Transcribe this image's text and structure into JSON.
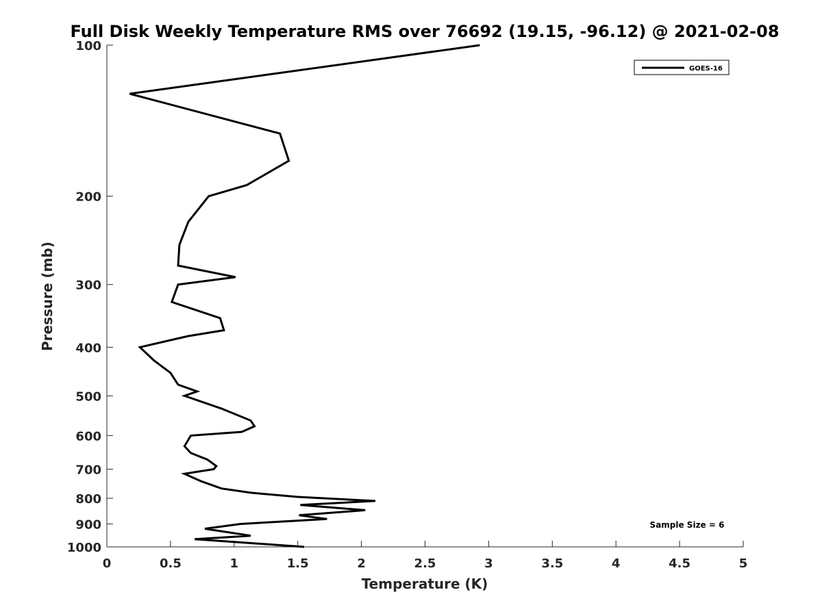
{
  "chart_data": {
    "type": "line",
    "title": "Full Disk Weekly Temperature RMS over 76692 (19.15, -96.12) @ 2021-02-08",
    "xlabel": "Temperature (K)",
    "ylabel": "Pressure (mb)",
    "xlim": [
      0,
      5
    ],
    "ylim": [
      100,
      1000
    ],
    "y_scale": "log",
    "y_reversed": true,
    "x_ticks": [
      "0",
      "0.5",
      "1",
      "1.5",
      "2",
      "2.5",
      "3",
      "3.5",
      "4",
      "4.5",
      "5"
    ],
    "y_ticks": [
      "100",
      "200",
      "300",
      "400",
      "500",
      "600",
      "700",
      "800",
      "900",
      "1000"
    ],
    "legend": {
      "position": "top-right",
      "entries": [
        "GOES-16"
      ]
    },
    "annotation": "Sample Size = 6",
    "series": [
      {
        "name": "GOES-16",
        "color": "#000000",
        "points": [
          [
            2.93,
            100
          ],
          [
            0.18,
            125
          ],
          [
            1.36,
            150
          ],
          [
            1.43,
            170
          ],
          [
            1.1,
            190
          ],
          [
            0.8,
            200
          ],
          [
            0.64,
            225
          ],
          [
            0.57,
            250
          ],
          [
            0.56,
            275
          ],
          [
            1.01,
            290
          ],
          [
            0.56,
            300
          ],
          [
            0.51,
            325
          ],
          [
            0.89,
            350
          ],
          [
            0.92,
            370
          ],
          [
            0.64,
            380
          ],
          [
            0.26,
            400
          ],
          [
            0.37,
            425
          ],
          [
            0.5,
            450
          ],
          [
            0.56,
            475
          ],
          [
            0.71,
            490
          ],
          [
            0.61,
            500
          ],
          [
            0.9,
            530
          ],
          [
            1.13,
            560
          ],
          [
            1.16,
            575
          ],
          [
            1.06,
            590
          ],
          [
            0.66,
            600
          ],
          [
            0.61,
            630
          ],
          [
            0.66,
            650
          ],
          [
            0.79,
            670
          ],
          [
            0.86,
            690
          ],
          [
            0.84,
            700
          ],
          [
            0.61,
            715
          ],
          [
            0.74,
            740
          ],
          [
            0.9,
            765
          ],
          [
            1.13,
            780
          ],
          [
            1.5,
            795
          ],
          [
            2.11,
            810
          ],
          [
            1.52,
            825
          ],
          [
            2.03,
            845
          ],
          [
            1.51,
            865
          ],
          [
            1.73,
            880
          ],
          [
            1.05,
            900
          ],
          [
            0.77,
            920
          ],
          [
            1.13,
            950
          ],
          [
            0.69,
            965
          ],
          [
            1.55,
            1000
          ]
        ]
      }
    ]
  }
}
